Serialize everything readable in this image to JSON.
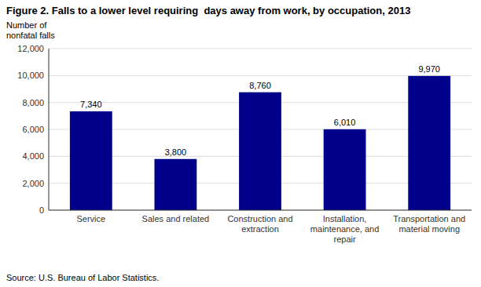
{
  "chart_data": {
    "type": "bar",
    "title": "Figure 2. Falls to a lower level requiring  days away from work, by occupation, 2013",
    "ylabel": "Number of\nnonfatal falls",
    "source": "Source: U.S. Bureau of Labor Statistics.",
    "categories": [
      "Service",
      "Sales and related",
      "Construction and\nextraction",
      "Installation,\nmaintenance, and\nrepair",
      "Transportation and\nmaterial moving"
    ],
    "values": [
      7340,
      3800,
      8760,
      6010,
      9970
    ],
    "value_labels": [
      "7,340",
      "3,800",
      "8,760",
      "6,010",
      "9,970"
    ],
    "color": "#00008B",
    "ylim": [
      0,
      12000
    ],
    "yticks": [
      0,
      {
        "value": 2000,
        "label": "2,000"
      },
      {
        "value": 4000,
        "label": "4,000"
      },
      {
        "value": 6000,
        "label": "6,000"
      },
      {
        "value": 8000,
        "label": "8,000"
      },
      {
        "value": 10000,
        "label": "10,000"
      },
      {
        "value": 12000,
        "label": "12,000"
      }
    ],
    "grid": true,
    "data_labels": true
  }
}
